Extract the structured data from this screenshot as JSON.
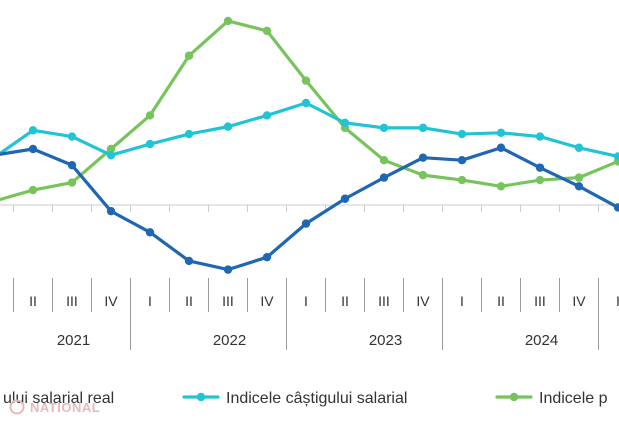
{
  "chart_data": {
    "type": "line",
    "categories": [
      "I",
      "II",
      "III",
      "IV",
      "I",
      "II",
      "III",
      "IV",
      "I",
      "II",
      "III",
      "IV",
      "I",
      "II",
      "III",
      "IV",
      "I"
    ],
    "years": [
      "2021",
      "2022",
      "2023",
      "2024"
    ],
    "series": [
      {
        "name": "...ului salarial real",
        "color": "#1f66b3",
        "values": [
          0.4,
          0.45,
          0.32,
          -0.05,
          -0.22,
          -0.45,
          -0.52,
          -0.42,
          -0.15,
          0.05,
          0.22,
          0.38,
          0.36,
          0.46,
          0.3,
          0.15,
          -0.02
        ]
      },
      {
        "name": "Indicele câștigului salarial",
        "color": "#21c4d4",
        "values": [
          0.38,
          0.6,
          0.55,
          0.4,
          0.49,
          0.57,
          0.63,
          0.72,
          0.82,
          0.66,
          0.62,
          0.62,
          0.57,
          0.58,
          0.55,
          0.46,
          0.39
        ]
      },
      {
        "name": "Indicele p...",
        "color": "#78c45c",
        "values": [
          0.03,
          0.12,
          0.18,
          0.45,
          0.72,
          1.2,
          1.48,
          1.4,
          1.0,
          0.62,
          0.36,
          0.24,
          0.2,
          0.15,
          0.2,
          0.22,
          0.35
        ]
      }
    ],
    "ylim": [
      -0.7,
      1.6
    ]
  },
  "watermark": "NATIONAL"
}
